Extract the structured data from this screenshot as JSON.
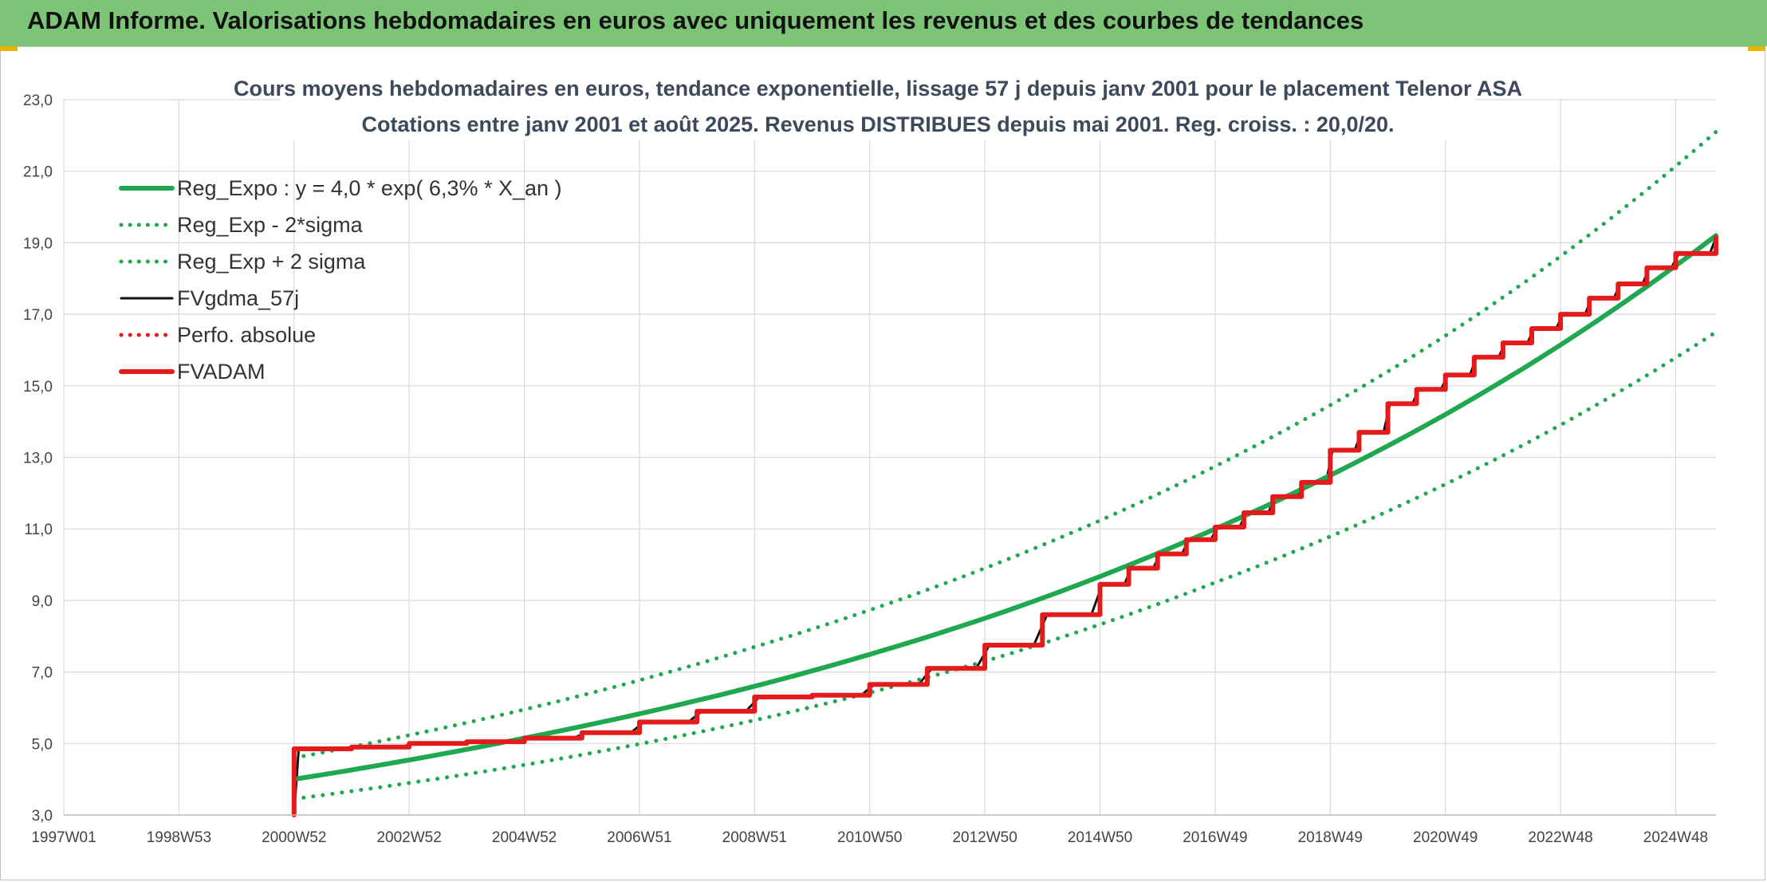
{
  "header": {
    "title": "ADAM Informe. Valorisations hebdomadaires en euros avec uniquement les revenus et des courbes de tendances"
  },
  "chart_data": {
    "type": "line",
    "title": "Cours moyens hebdomadaires en euros, tendance exponentielle, lissage 57 j depuis janv 2001 pour le placement Telenor ASA",
    "subtitle": "Cotations entre janv 2001 et août 2025. Revenus DISTRIBUES depuis mai 2001. Reg. croiss. : 20,0/20.",
    "xlabel": "",
    "ylabel": "",
    "ylim": [
      3,
      23
    ],
    "xlim": [
      1997.0,
      2025.7
    ],
    "y_ticks": [
      "3,0",
      "5,0",
      "7,0",
      "9,0",
      "11,0",
      "13,0",
      "15,0",
      "17,0",
      "19,0",
      "21,0",
      "23,0"
    ],
    "x_ticks": [
      {
        "label": "1997W01",
        "x": 1997.0
      },
      {
        "label": "1998W53",
        "x": 1999.0
      },
      {
        "label": "2000W52",
        "x": 2001.0
      },
      {
        "label": "2002W52",
        "x": 2003.0
      },
      {
        "label": "2004W52",
        "x": 2005.0
      },
      {
        "label": "2006W51",
        "x": 2007.0
      },
      {
        "label": "2008W51",
        "x": 2009.0
      },
      {
        "label": "2010W50",
        "x": 2011.0
      },
      {
        "label": "2012W50",
        "x": 2013.0
      },
      {
        "label": "2014W50",
        "x": 2015.0
      },
      {
        "label": "2016W49",
        "x": 2017.0
      },
      {
        "label": "2018W49",
        "x": 2019.0
      },
      {
        "label": "2020W49",
        "x": 2021.0
      },
      {
        "label": "2022W48",
        "x": 2023.0
      },
      {
        "label": "2024W48",
        "x": 2025.0
      }
    ],
    "grid": true,
    "legend_position": "top-left",
    "series": [
      {
        "name": "Reg_Expo : y = 4,0 * exp( 6,3% *  X_an )",
        "color": "#1fa84f",
        "style": "solid",
        "x": [
          2001.0,
          2005.0,
          2009.0,
          2013.0,
          2017.0,
          2021.0,
          2025.7
        ],
        "y": [
          4.0,
          5.15,
          6.6,
          8.5,
          11.0,
          14.2,
          19.2
        ]
      },
      {
        "name": "Reg_Exp - 2*sigma",
        "color": "#1fa84f",
        "style": "dotted",
        "x": [
          2001.0,
          2005.0,
          2009.0,
          2013.0,
          2017.0,
          2021.0,
          2025.7
        ],
        "y": [
          3.45,
          4.4,
          5.65,
          7.3,
          9.5,
          12.25,
          16.5
        ]
      },
      {
        "name": "Reg_Exp + 2 sigma",
        "color": "#1fa84f",
        "style": "dotted",
        "x": [
          2001.0,
          2005.0,
          2009.0,
          2013.0,
          2017.0,
          2021.0,
          2025.7
        ],
        "y": [
          4.6,
          5.95,
          7.7,
          9.9,
          12.75,
          16.4,
          22.1
        ]
      },
      {
        "name": "FVgdma_57j",
        "color": "#111111",
        "style": "solid",
        "x": [
          2001.0,
          2001.0,
          2002.0,
          2003.0,
          2004.0,
          2005.0,
          2006.0,
          2007.0,
          2008.0,
          2009.0,
          2010.0,
          2011.0,
          2012.0,
          2013.0,
          2014.0,
          2015.0,
          2015.5,
          2016.0,
          2016.5,
          2017.0,
          2017.5,
          2018.0,
          2018.5,
          2019.0,
          2019.5,
          2020.0,
          2020.5,
          2021.0,
          2021.5,
          2022.0,
          2022.5,
          2023.0,
          2023.5,
          2024.0,
          2024.5,
          2025.0,
          2025.7
        ],
        "y": [
          3.0,
          4.85,
          4.9,
          5.0,
          5.05,
          5.15,
          5.3,
          5.6,
          5.9,
          6.3,
          6.35,
          6.65,
          7.1,
          7.75,
          8.6,
          9.45,
          9.9,
          10.3,
          10.7,
          11.05,
          11.45,
          11.9,
          12.3,
          13.2,
          13.7,
          14.5,
          14.9,
          15.3,
          15.8,
          16.2,
          16.6,
          17.0,
          17.45,
          17.85,
          18.3,
          18.7,
          19.15
        ]
      },
      {
        "name": "Perfo. absolue",
        "color": "#e31b1b",
        "style": "dotted",
        "x": [],
        "y": []
      },
      {
        "name": "FVADAM",
        "color": "#e31b1b",
        "style": "solid",
        "x": [
          2001.0,
          2001.0,
          2002.0,
          2003.0,
          2004.0,
          2005.0,
          2006.0,
          2007.0,
          2008.0,
          2009.0,
          2010.0,
          2011.0,
          2012.0,
          2013.0,
          2014.0,
          2015.0,
          2015.5,
          2016.0,
          2016.5,
          2017.0,
          2017.5,
          2018.0,
          2018.5,
          2019.0,
          2019.5,
          2020.0,
          2020.5,
          2021.0,
          2021.5,
          2022.0,
          2022.5,
          2023.0,
          2023.5,
          2024.0,
          2024.5,
          2025.0,
          2025.7
        ],
        "y": [
          3.0,
          4.85,
          4.9,
          5.0,
          5.05,
          5.15,
          5.3,
          5.6,
          5.9,
          6.3,
          6.35,
          6.65,
          7.1,
          7.75,
          8.6,
          9.45,
          9.9,
          10.3,
          10.7,
          11.05,
          11.45,
          11.9,
          12.3,
          13.2,
          13.7,
          14.5,
          14.9,
          15.3,
          15.8,
          16.2,
          16.6,
          17.0,
          17.45,
          17.85,
          18.3,
          18.7,
          19.15
        ],
        "step": true
      }
    ]
  }
}
